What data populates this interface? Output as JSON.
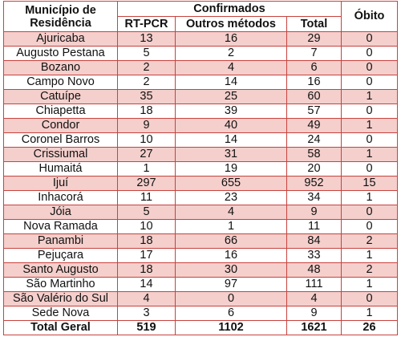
{
  "table": {
    "headers": {
      "municipio": [
        "Município de",
        "Residência"
      ],
      "confirmados": "Confirmados",
      "rt_pcr": "RT-PCR",
      "outros": "Outros métodos",
      "total": "Total",
      "obito": "Óbito"
    },
    "rows": [
      {
        "municipio": "Ajuricaba",
        "rt_pcr": "13",
        "outros": "16",
        "total": "29",
        "obito": "0"
      },
      {
        "municipio": "Augusto Pestana",
        "rt_pcr": "5",
        "outros": "2",
        "total": "7",
        "obito": "0"
      },
      {
        "municipio": "Bozano",
        "rt_pcr": "2",
        "outros": "4",
        "total": "6",
        "obito": "0"
      },
      {
        "municipio": "Campo Novo",
        "rt_pcr": "2",
        "outros": "14",
        "total": "16",
        "obito": "0"
      },
      {
        "municipio": "Catuípe",
        "rt_pcr": "35",
        "outros": "25",
        "total": "60",
        "obito": "1"
      },
      {
        "municipio": "Chiapetta",
        "rt_pcr": "18",
        "outros": "39",
        "total": "57",
        "obito": "0"
      },
      {
        "municipio": "Condor",
        "rt_pcr": "9",
        "outros": "40",
        "total": "49",
        "obito": "1"
      },
      {
        "municipio": "Coronel Barros",
        "rt_pcr": "10",
        "outros": "14",
        "total": "24",
        "obito": "0"
      },
      {
        "municipio": "Crissiumal",
        "rt_pcr": "27",
        "outros": "31",
        "total": "58",
        "obito": "1"
      },
      {
        "municipio": "Humaitá",
        "rt_pcr": "1",
        "outros": "19",
        "total": "20",
        "obito": "0"
      },
      {
        "municipio": "Ijuí",
        "rt_pcr": "297",
        "outros": "655",
        "total": "952",
        "obito": "15"
      },
      {
        "municipio": "Inhacorá",
        "rt_pcr": "11",
        "outros": "23",
        "total": "34",
        "obito": "1"
      },
      {
        "municipio": "Jóia",
        "rt_pcr": "5",
        "outros": "4",
        "total": "9",
        "obito": "0"
      },
      {
        "municipio": "Nova Ramada",
        "rt_pcr": "10",
        "outros": "1",
        "total": "11",
        "obito": "0"
      },
      {
        "municipio": "Panambi",
        "rt_pcr": "18",
        "outros": "66",
        "total": "84",
        "obito": "2"
      },
      {
        "municipio": "Pejuçara",
        "rt_pcr": "17",
        "outros": "16",
        "total": "33",
        "obito": "1"
      },
      {
        "municipio": "Santo Augusto",
        "rt_pcr": "18",
        "outros": "30",
        "total": "48",
        "obito": "2"
      },
      {
        "municipio": "São Martinho",
        "rt_pcr": "14",
        "outros": "97",
        "total": "111",
        "obito": "1"
      },
      {
        "municipio": "São Valério do Sul",
        "rt_pcr": "4",
        "outros": "0",
        "total": "4",
        "obito": "0"
      },
      {
        "municipio": "Sede Nova",
        "rt_pcr": "3",
        "outros": "6",
        "total": "9",
        "obito": "1"
      }
    ],
    "footer": {
      "municipio": "Total Geral",
      "rt_pcr": "519",
      "outros": "1102",
      "total": "1621",
      "obito": "26"
    }
  },
  "colors": {
    "border": "#c8423e",
    "stripe": "#f4cfcc",
    "background": "#ffffff"
  }
}
